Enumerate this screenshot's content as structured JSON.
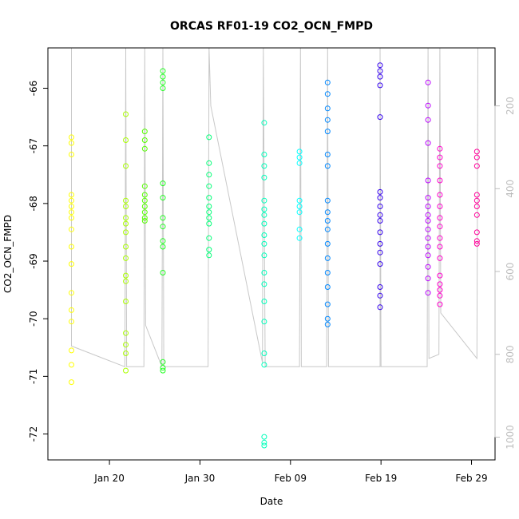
{
  "chart_data": {
    "type": "scatter",
    "title": "ORCAS RF01-19 CO2_OCN_FMPD",
    "xlabel": "Date",
    "ylabel": "CO2_OCN_FMPD",
    "x_ticks": [
      "Jan 20",
      "Jan 30",
      "Feb 09",
      "Feb 19",
      "Feb 29"
    ],
    "y_ticks": [
      "-66",
      "-67",
      "-68",
      "-69",
      "-70",
      "-71",
      "-72"
    ],
    "y2_ticks": [
      "200",
      "400",
      "600",
      "800",
      "1000"
    ],
    "xlim_days": [
      13.2,
      62.6
    ],
    "ylim": [
      -72.45,
      -65.3
    ],
    "y2lim": [
      1055,
      60
    ],
    "grid": false,
    "colors": {
      "secondary_axis": "#bdbdbd",
      "altitude_line": "#c8c8c8"
    },
    "series": [
      {
        "color": "#ffff00",
        "points": [
          [
            15.8,
            -66.85
          ],
          [
            15.8,
            -66.95
          ],
          [
            15.8,
            -67.15
          ],
          [
            15.8,
            -67.85
          ],
          [
            15.8,
            -67.95
          ],
          [
            15.8,
            -68.05
          ],
          [
            15.8,
            -68.15
          ],
          [
            15.8,
            -68.25
          ],
          [
            15.8,
            -68.45
          ],
          [
            15.8,
            -68.75
          ],
          [
            15.8,
            -69.05
          ],
          [
            15.8,
            -69.55
          ],
          [
            15.8,
            -69.85
          ],
          [
            15.8,
            -70.05
          ],
          [
            15.8,
            -70.55
          ],
          [
            15.8,
            -70.8
          ],
          [
            15.8,
            -71.1
          ]
        ]
      },
      {
        "color": "#aaff00",
        "points": [
          [
            21.8,
            -66.45
          ],
          [
            21.8,
            -66.9
          ],
          [
            21.8,
            -67.35
          ],
          [
            21.8,
            -67.95
          ],
          [
            21.8,
            -68.05
          ],
          [
            21.8,
            -68.25
          ],
          [
            21.8,
            -68.35
          ],
          [
            21.8,
            -68.5
          ],
          [
            21.8,
            -68.75
          ],
          [
            21.8,
            -68.95
          ],
          [
            21.8,
            -69.25
          ],
          [
            21.8,
            -69.35
          ],
          [
            21.8,
            -69.7
          ],
          [
            21.8,
            -70.25
          ],
          [
            21.8,
            -70.45
          ],
          [
            21.8,
            -70.6
          ],
          [
            21.8,
            -70.9
          ]
        ]
      },
      {
        "color": "#55ff00",
        "points": [
          [
            23.9,
            -66.75
          ],
          [
            23.9,
            -66.9
          ],
          [
            23.9,
            -67.05
          ],
          [
            23.9,
            -67.7
          ],
          [
            23.9,
            -67.85
          ],
          [
            23.9,
            -67.95
          ],
          [
            23.9,
            -68.05
          ],
          [
            23.9,
            -68.15
          ],
          [
            23.9,
            -68.25
          ],
          [
            23.9,
            -68.3
          ]
        ]
      },
      {
        "color": "#22ff22",
        "points": [
          [
            25.9,
            -65.7
          ],
          [
            25.9,
            -65.8
          ],
          [
            25.9,
            -65.9
          ],
          [
            25.9,
            -66.0
          ],
          [
            25.9,
            -67.65
          ],
          [
            25.9,
            -67.9
          ],
          [
            25.9,
            -68.25
          ],
          [
            25.9,
            -68.4
          ],
          [
            25.9,
            -68.65
          ],
          [
            25.9,
            -68.75
          ],
          [
            25.9,
            -69.2
          ],
          [
            25.9,
            -70.75
          ],
          [
            25.9,
            -70.85
          ],
          [
            25.9,
            -70.9
          ]
        ]
      },
      {
        "color": "#00ff77",
        "points": [
          [
            31.0,
            -66.85
          ],
          [
            31.0,
            -67.3
          ],
          [
            31.0,
            -67.5
          ],
          [
            31.0,
            -67.7
          ],
          [
            31.0,
            -67.9
          ],
          [
            31.0,
            -68.05
          ],
          [
            31.0,
            -68.15
          ],
          [
            31.0,
            -68.25
          ],
          [
            31.0,
            -68.35
          ],
          [
            31.0,
            -68.6
          ],
          [
            31.0,
            -68.8
          ],
          [
            31.0,
            -68.9
          ]
        ]
      },
      {
        "color": "#00ffbb",
        "points": [
          [
            37.1,
            -66.6
          ],
          [
            37.1,
            -67.15
          ],
          [
            37.1,
            -67.35
          ],
          [
            37.1,
            -67.55
          ],
          [
            37.1,
            -67.95
          ],
          [
            37.1,
            -68.1
          ],
          [
            37.1,
            -68.2
          ],
          [
            37.1,
            -68.35
          ],
          [
            37.1,
            -68.55
          ],
          [
            37.1,
            -68.7
          ],
          [
            37.1,
            -68.9
          ],
          [
            37.1,
            -69.2
          ],
          [
            37.1,
            -69.4
          ],
          [
            37.1,
            -69.7
          ],
          [
            37.1,
            -70.05
          ],
          [
            37.1,
            -70.6
          ],
          [
            37.1,
            -70.8
          ],
          [
            37.1,
            -72.05
          ],
          [
            37.1,
            -72.15
          ],
          [
            37.1,
            -72.2
          ]
        ]
      },
      {
        "color": "#00ffff",
        "points": [
          [
            41.0,
            -67.1
          ],
          [
            41.0,
            -67.2
          ],
          [
            41.0,
            -67.3
          ],
          [
            41.0,
            -67.95
          ],
          [
            41.0,
            -68.05
          ],
          [
            41.0,
            -68.15
          ],
          [
            41.0,
            -68.45
          ],
          [
            41.0,
            -68.6
          ]
        ]
      },
      {
        "color": "#0088ff",
        "points": [
          [
            44.1,
            -65.9
          ],
          [
            44.1,
            -66.1
          ],
          [
            44.1,
            -66.35
          ],
          [
            44.1,
            -66.55
          ],
          [
            44.1,
            -66.75
          ],
          [
            44.1,
            -67.15
          ],
          [
            44.1,
            -67.35
          ],
          [
            44.1,
            -67.95
          ],
          [
            44.1,
            -68.15
          ],
          [
            44.1,
            -68.3
          ],
          [
            44.1,
            -68.45
          ],
          [
            44.1,
            -68.7
          ],
          [
            44.1,
            -68.95
          ],
          [
            44.1,
            -69.2
          ],
          [
            44.1,
            -69.45
          ],
          [
            44.1,
            -69.75
          ],
          [
            44.1,
            -70.0
          ],
          [
            44.1,
            -70.1
          ]
        ]
      },
      {
        "color": "#3300ee",
        "points": [
          [
            49.9,
            -65.6
          ],
          [
            49.9,
            -65.7
          ],
          [
            49.9,
            -65.8
          ],
          [
            49.9,
            -65.95
          ],
          [
            49.9,
            -66.5
          ],
          [
            49.9,
            -67.8
          ],
          [
            49.9,
            -67.9
          ],
          [
            49.9,
            -68.05
          ],
          [
            49.9,
            -68.2
          ],
          [
            49.9,
            -68.3
          ],
          [
            49.9,
            -68.5
          ],
          [
            49.9,
            -68.7
          ],
          [
            49.9,
            -68.85
          ],
          [
            49.9,
            -69.05
          ],
          [
            49.9,
            -69.45
          ],
          [
            49.9,
            -69.6
          ],
          [
            49.9,
            -69.8
          ]
        ]
      },
      {
        "color": "#bb00ff",
        "points": [
          [
            55.2,
            -65.9
          ],
          [
            55.2,
            -66.3
          ],
          [
            55.2,
            -66.55
          ],
          [
            55.2,
            -66.95
          ],
          [
            55.2,
            -67.6
          ],
          [
            55.2,
            -67.9
          ],
          [
            55.2,
            -68.05
          ],
          [
            55.2,
            -68.2
          ],
          [
            55.2,
            -68.3
          ],
          [
            55.2,
            -68.45
          ],
          [
            55.2,
            -68.6
          ],
          [
            55.2,
            -68.75
          ],
          [
            55.2,
            -68.9
          ],
          [
            55.2,
            -69.1
          ],
          [
            55.2,
            -69.3
          ],
          [
            55.2,
            -69.55
          ]
        ]
      },
      {
        "color": "#ff00cc",
        "points": [
          [
            56.5,
            -67.05
          ],
          [
            56.5,
            -67.2
          ],
          [
            56.5,
            -67.35
          ],
          [
            56.5,
            -67.6
          ],
          [
            56.5,
            -67.85
          ],
          [
            56.5,
            -68.05
          ],
          [
            56.5,
            -68.25
          ],
          [
            56.5,
            -68.4
          ],
          [
            56.5,
            -68.6
          ],
          [
            56.5,
            -68.75
          ],
          [
            56.5,
            -68.95
          ],
          [
            56.5,
            -69.25
          ],
          [
            56.5,
            -69.4
          ],
          [
            56.5,
            -69.5
          ],
          [
            56.5,
            -69.6
          ],
          [
            56.5,
            -69.75
          ]
        ]
      },
      {
        "color": "#ff0099",
        "points": [
          [
            60.6,
            -67.1
          ],
          [
            60.6,
            -67.2
          ],
          [
            60.6,
            -67.35
          ],
          [
            60.6,
            -67.85
          ],
          [
            60.6,
            -67.95
          ],
          [
            60.6,
            -68.05
          ],
          [
            60.6,
            -68.2
          ],
          [
            60.6,
            -68.5
          ],
          [
            60.6,
            -68.65
          ],
          [
            60.6,
            -68.7
          ]
        ]
      }
    ],
    "altitude_line": [
      [
        15.8,
        60
      ],
      [
        15.8,
        780
      ],
      [
        21.7,
        830
      ],
      [
        21.8,
        60
      ],
      [
        21.9,
        830
      ],
      [
        23.8,
        830
      ],
      [
        23.9,
        60
      ],
      [
        24.0,
        730
      ],
      [
        25.8,
        830
      ],
      [
        25.9,
        60
      ],
      [
        26.0,
        830
      ],
      [
        30.9,
        830
      ],
      [
        31.0,
        60
      ],
      [
        31.2,
        200
      ],
      [
        36.9,
        820
      ],
      [
        37.0,
        60
      ],
      [
        37.2,
        830
      ],
      [
        41.0,
        830
      ],
      [
        41.1,
        60
      ],
      [
        41.2,
        830
      ],
      [
        44.0,
        830
      ],
      [
        44.1,
        60
      ],
      [
        44.2,
        830
      ],
      [
        49.9,
        830
      ],
      [
        49.9,
        60
      ],
      [
        50.0,
        830
      ],
      [
        55.1,
        830
      ],
      [
        55.2,
        60
      ],
      [
        55.3,
        810
      ],
      [
        56.4,
        800
      ],
      [
        56.5,
        60
      ],
      [
        56.6,
        700
      ],
      [
        60.6,
        810
      ],
      [
        60.7,
        60
      ]
    ]
  }
}
